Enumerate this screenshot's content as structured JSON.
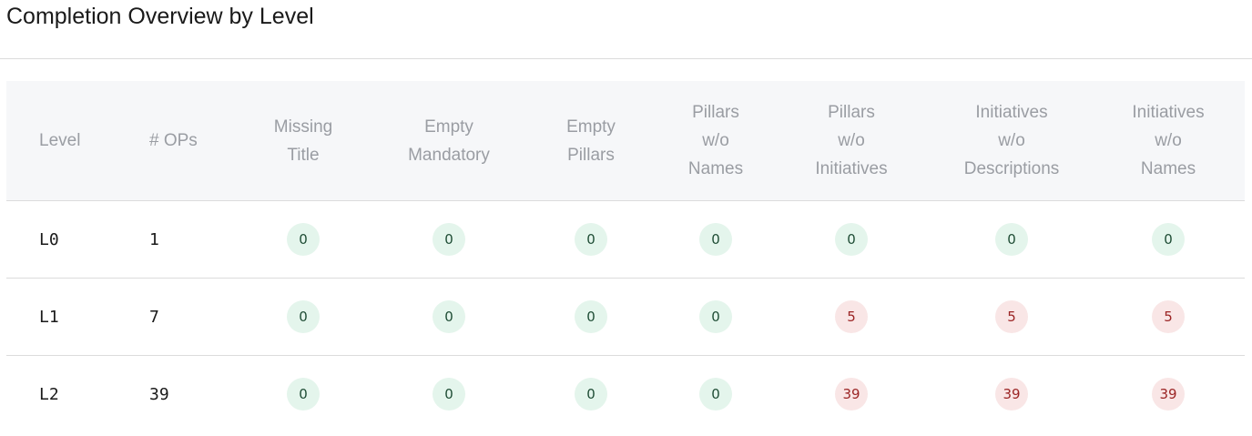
{
  "title": "Completion Overview by Level",
  "columns": [
    "Level",
    "# OPs",
    "Missing\nTitle",
    "Empty\nMandatory",
    "Empty\nPillars",
    "Pillars\nw/o\nNames",
    "Pillars\nw/o\nInitiatives",
    "Initiatives\nw/o\nDescriptions",
    "Initiatives\nw/o\nNames"
  ],
  "rows": [
    {
      "level": "L0",
      "ops": "1",
      "values": [
        "0",
        "0",
        "0",
        "0",
        "0",
        "0",
        "0"
      ]
    },
    {
      "level": "L1",
      "ops": "7",
      "values": [
        "0",
        "0",
        "0",
        "0",
        "5",
        "5",
        "5"
      ]
    },
    {
      "level": "L2",
      "ops": "39",
      "values": [
        "0",
        "0",
        "0",
        "0",
        "39",
        "39",
        "39"
      ]
    }
  ],
  "colors": {
    "ok_bg": "#e4f5ec",
    "ok_text": "#1f4d35",
    "bad_bg": "#f9e6e6",
    "bad_text": "#9b2525"
  }
}
